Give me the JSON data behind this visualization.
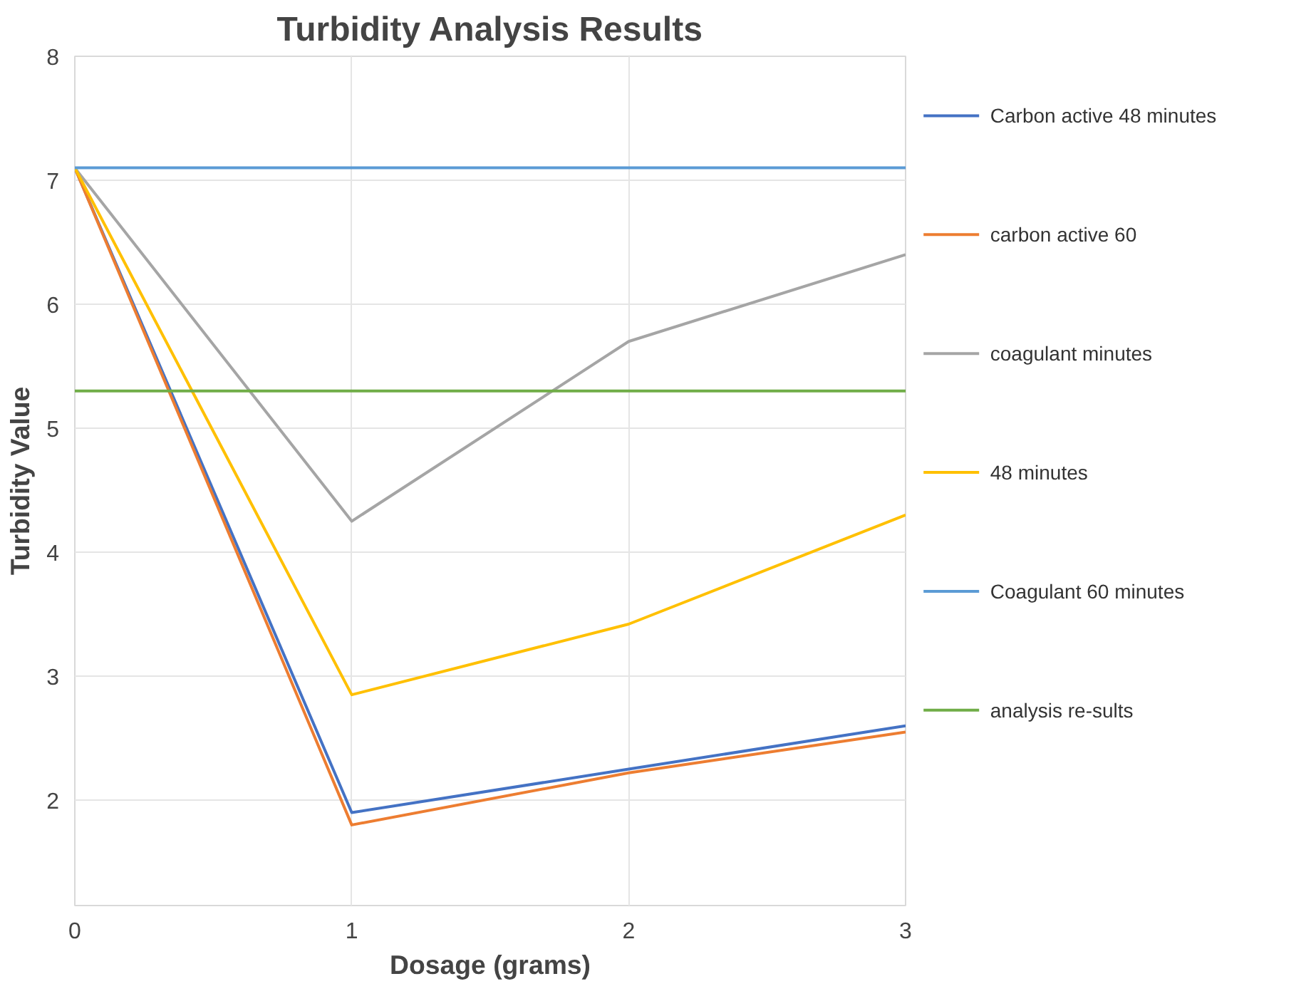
{
  "chart_data": {
    "type": "line",
    "title": "Turbidity Analysis Results",
    "xlabel": "Dosage (grams)",
    "ylabel": "Turbidity Value",
    "x": [
      0,
      1,
      2,
      3
    ],
    "xlim": [
      0,
      3
    ],
    "xticks": [
      0,
      1,
      2,
      3
    ],
    "ylim": [
      1.15,
      8
    ],
    "yticks": [
      2,
      3,
      4,
      5,
      6,
      7,
      8
    ],
    "grid": true,
    "legend": "right",
    "line_style": "solid",
    "series": [
      {
        "name": "Carbon active 48 minutes",
        "color": "#4472c4",
        "values": [
          7.1,
          1.9,
          2.25,
          2.6
        ]
      },
      {
        "name": "carbon active 60",
        "color": "#ed7d31",
        "values": [
          7.1,
          1.8,
          2.22,
          2.55
        ]
      },
      {
        "name": "coagulant minutes",
        "color": "#a5a5a5",
        "values": [
          7.1,
          4.25,
          5.7,
          6.4
        ]
      },
      {
        "name": "48 minutes",
        "color": "#ffc000",
        "values": [
          7.1,
          2.85,
          3.42,
          4.3
        ]
      },
      {
        "name": "Coagulant 60 minutes",
        "color": "#5b9bd5",
        "values": [
          7.1,
          7.1,
          7.1,
          7.1
        ]
      },
      {
        "name": "analysis re-sults",
        "color": "#70ad47",
        "values": [
          5.3,
          5.3,
          5.3,
          5.3
        ]
      }
    ]
  }
}
